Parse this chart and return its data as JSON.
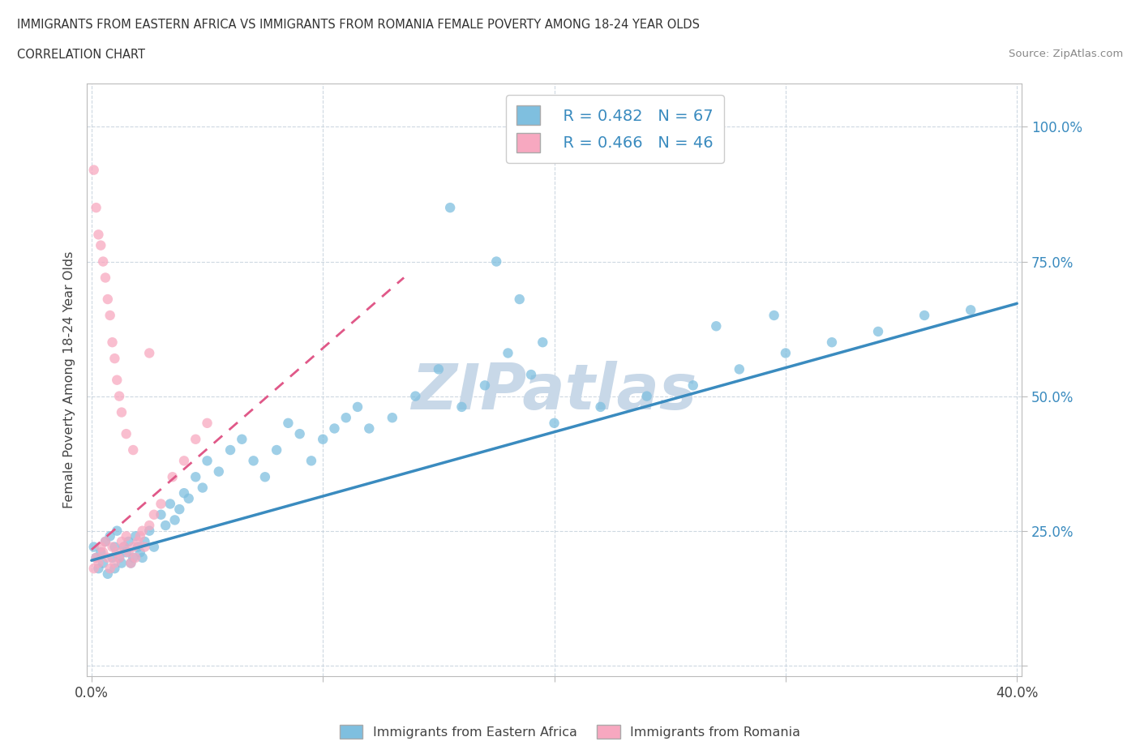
{
  "title": "IMMIGRANTS FROM EASTERN AFRICA VS IMMIGRANTS FROM ROMANIA FEMALE POVERTY AMONG 18-24 YEAR OLDS",
  "subtitle": "CORRELATION CHART",
  "source": "Source: ZipAtlas.com",
  "xlabel_blue": "Immigrants from Eastern Africa",
  "xlabel_pink": "Immigrants from Romania",
  "ylabel": "Female Poverty Among 18-24 Year Olds",
  "xlim": [
    -0.002,
    0.402
  ],
  "ylim": [
    -0.02,
    1.08
  ],
  "x_ticks": [
    0.0,
    0.1,
    0.2,
    0.3,
    0.4
  ],
  "x_tick_labels": [
    "0.0%",
    "",
    "",
    "",
    "40.0%"
  ],
  "y_ticks": [
    0.0,
    0.25,
    0.5,
    0.75,
    1.0
  ],
  "y_tick_labels": [
    "",
    "25.0%",
    "50.0%",
    "75.0%",
    "100.0%"
  ],
  "blue_color": "#7fbfdf",
  "pink_color": "#f7a8c0",
  "trend_blue_color": "#3a8bbf",
  "trend_pink_color": "#e05888",
  "R_blue": 0.482,
  "N_blue": 67,
  "R_pink": 0.466,
  "N_pink": 46,
  "watermark": "ZIPatlas",
  "watermark_color": "#c8d8e8",
  "blue_scatter_x": [
    0.001,
    0.002,
    0.003,
    0.004,
    0.005,
    0.006,
    0.007,
    0.008,
    0.009,
    0.01,
    0.01,
    0.011,
    0.012,
    0.013,
    0.014,
    0.015,
    0.016,
    0.017,
    0.018,
    0.019,
    0.02,
    0.021,
    0.022,
    0.023,
    0.025,
    0.027,
    0.03,
    0.032,
    0.034,
    0.036,
    0.038,
    0.04,
    0.042,
    0.045,
    0.048,
    0.05,
    0.055,
    0.06,
    0.065,
    0.07,
    0.075,
    0.08,
    0.085,
    0.09,
    0.095,
    0.1,
    0.105,
    0.11,
    0.115,
    0.12,
    0.13,
    0.14,
    0.15,
    0.16,
    0.17,
    0.18,
    0.19,
    0.2,
    0.22,
    0.24,
    0.26,
    0.28,
    0.3,
    0.32,
    0.34,
    0.36,
    0.38
  ],
  "blue_scatter_y": [
    0.22,
    0.2,
    0.18,
    0.21,
    0.19,
    0.23,
    0.17,
    0.24,
    0.2,
    0.22,
    0.18,
    0.25,
    0.2,
    0.19,
    0.22,
    0.21,
    0.23,
    0.19,
    0.2,
    0.24,
    0.22,
    0.21,
    0.2,
    0.23,
    0.25,
    0.22,
    0.28,
    0.26,
    0.3,
    0.27,
    0.29,
    0.32,
    0.31,
    0.35,
    0.33,
    0.38,
    0.36,
    0.4,
    0.42,
    0.38,
    0.35,
    0.4,
    0.45,
    0.43,
    0.38,
    0.42,
    0.44,
    0.46,
    0.48,
    0.44,
    0.46,
    0.5,
    0.55,
    0.48,
    0.52,
    0.58,
    0.54,
    0.45,
    0.48,
    0.5,
    0.52,
    0.55,
    0.58,
    0.6,
    0.62,
    0.65,
    0.66
  ],
  "blue_scatter_extra_x": [
    0.27,
    0.295,
    0.155,
    0.175,
    0.185,
    0.195
  ],
  "blue_scatter_extra_y": [
    0.63,
    0.65,
    0.85,
    0.75,
    0.68,
    0.6
  ],
  "pink_scatter_x": [
    0.001,
    0.002,
    0.003,
    0.004,
    0.005,
    0.006,
    0.007,
    0.008,
    0.009,
    0.01,
    0.011,
    0.012,
    0.013,
    0.014,
    0.015,
    0.016,
    0.017,
    0.018,
    0.019,
    0.02,
    0.021,
    0.022,
    0.023,
    0.025,
    0.027,
    0.03,
    0.035,
    0.04,
    0.045,
    0.05,
    0.001,
    0.002,
    0.003,
    0.004,
    0.005,
    0.006,
    0.007,
    0.008,
    0.009,
    0.01,
    0.011,
    0.012,
    0.013,
    0.015,
    0.018,
    0.025
  ],
  "pink_scatter_y": [
    0.18,
    0.2,
    0.19,
    0.22,
    0.21,
    0.23,
    0.2,
    0.18,
    0.22,
    0.19,
    0.21,
    0.2,
    0.23,
    0.22,
    0.24,
    0.21,
    0.19,
    0.22,
    0.2,
    0.23,
    0.24,
    0.25,
    0.22,
    0.26,
    0.28,
    0.3,
    0.35,
    0.38,
    0.42,
    0.45,
    0.92,
    0.85,
    0.8,
    0.78,
    0.75,
    0.72,
    0.68,
    0.65,
    0.6,
    0.57,
    0.53,
    0.5,
    0.47,
    0.43,
    0.4,
    0.58
  ],
  "trend_blue_x0": 0.0,
  "trend_blue_x1": 0.4,
  "trend_blue_y0": 0.195,
  "trend_blue_y1": 0.672,
  "trend_pink_x0": 0.0,
  "trend_pink_x1": 0.135,
  "trend_pink_y0": 0.215,
  "trend_pink_y1": 0.72
}
